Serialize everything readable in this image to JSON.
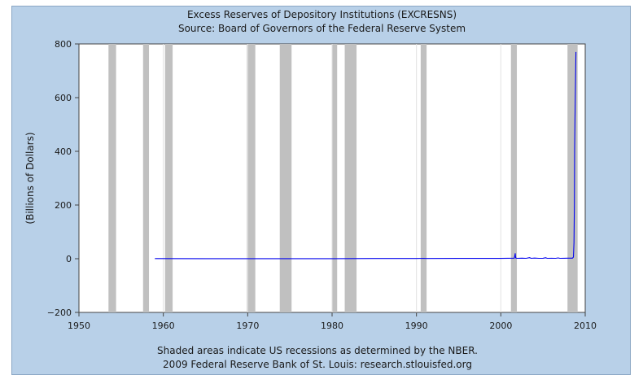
{
  "chart_data": {
    "type": "line",
    "title": "Excess Reserves of Depository Institutions (EXCRESNS)",
    "subtitle": "Source: Board of Governors of the Federal Reserve System",
    "xlabel": "",
    "ylabel": "(Billions of Dollars)",
    "xlim": [
      1950,
      2010
    ],
    "ylim": [
      -200,
      800
    ],
    "x_ticks": [
      1950,
      1960,
      1970,
      1980,
      1990,
      2000,
      2010
    ],
    "y_ticks": [
      -200,
      0,
      200,
      400,
      600,
      800
    ],
    "x_tick_labels": [
      "1950",
      "1960",
      "1970",
      "1980",
      "1990",
      "2000",
      "2010"
    ],
    "y_tick_labels": [
      "−200",
      "0",
      "200",
      "400",
      "600",
      "800"
    ],
    "grid": "vertical",
    "recessions": [
      [
        1953.5,
        1954.4
      ],
      [
        1957.6,
        1958.3
      ],
      [
        1960.2,
        1961.1
      ],
      [
        1969.9,
        1970.9
      ],
      [
        1973.8,
        1975.2
      ],
      [
        1980.0,
        1980.6
      ],
      [
        1981.5,
        1982.9
      ],
      [
        1990.5,
        1991.2
      ],
      [
        2001.2,
        2001.9
      ],
      [
        2007.9,
        2009.1
      ]
    ],
    "series": [
      {
        "name": "EXCRESNS",
        "color": "#0000ee",
        "points": [
          [
            1959.0,
            0.5
          ],
          [
            1965.0,
            0.4
          ],
          [
            1970.0,
            0.2
          ],
          [
            1975.0,
            0.3
          ],
          [
            1980.0,
            0.4
          ],
          [
            1985.0,
            0.8
          ],
          [
            1990.0,
            1.0
          ],
          [
            1990.9,
            1.5
          ],
          [
            1991.2,
            1.0
          ],
          [
            1995.0,
            1.1
          ],
          [
            1999.8,
            1.5
          ],
          [
            2000.0,
            1.2
          ],
          [
            2001.6,
            2.0
          ],
          [
            2001.7,
            19.0
          ],
          [
            2001.75,
            3.0
          ],
          [
            2001.9,
            1.5
          ],
          [
            2002.5,
            2.0
          ],
          [
            2003.0,
            1.5
          ],
          [
            2003.4,
            4.0
          ],
          [
            2003.6,
            1.5
          ],
          [
            2004.0,
            2.5
          ],
          [
            2004.5,
            1.5
          ],
          [
            2005.0,
            1.8
          ],
          [
            2005.3,
            3.5
          ],
          [
            2005.5,
            1.5
          ],
          [
            2006.0,
            1.8
          ],
          [
            2006.5,
            1.5
          ],
          [
            2006.8,
            3.0
          ],
          [
            2007.0,
            1.5
          ],
          [
            2007.5,
            1.8
          ],
          [
            2008.0,
            2.0
          ],
          [
            2008.5,
            2.0
          ],
          [
            2008.6,
            6.0
          ],
          [
            2008.67,
            60.0
          ],
          [
            2008.72,
            200.0
          ],
          [
            2008.75,
            410.0
          ],
          [
            2008.8,
            560.0
          ],
          [
            2008.85,
            660.0
          ],
          [
            2008.9,
            770.0
          ]
        ]
      }
    ],
    "footer_lines": [
      "Shaded areas indicate US recessions as determined by the NBER.",
      "2009 Federal Reserve Bank of St. Louis: research.stlouisfed.org"
    ]
  }
}
